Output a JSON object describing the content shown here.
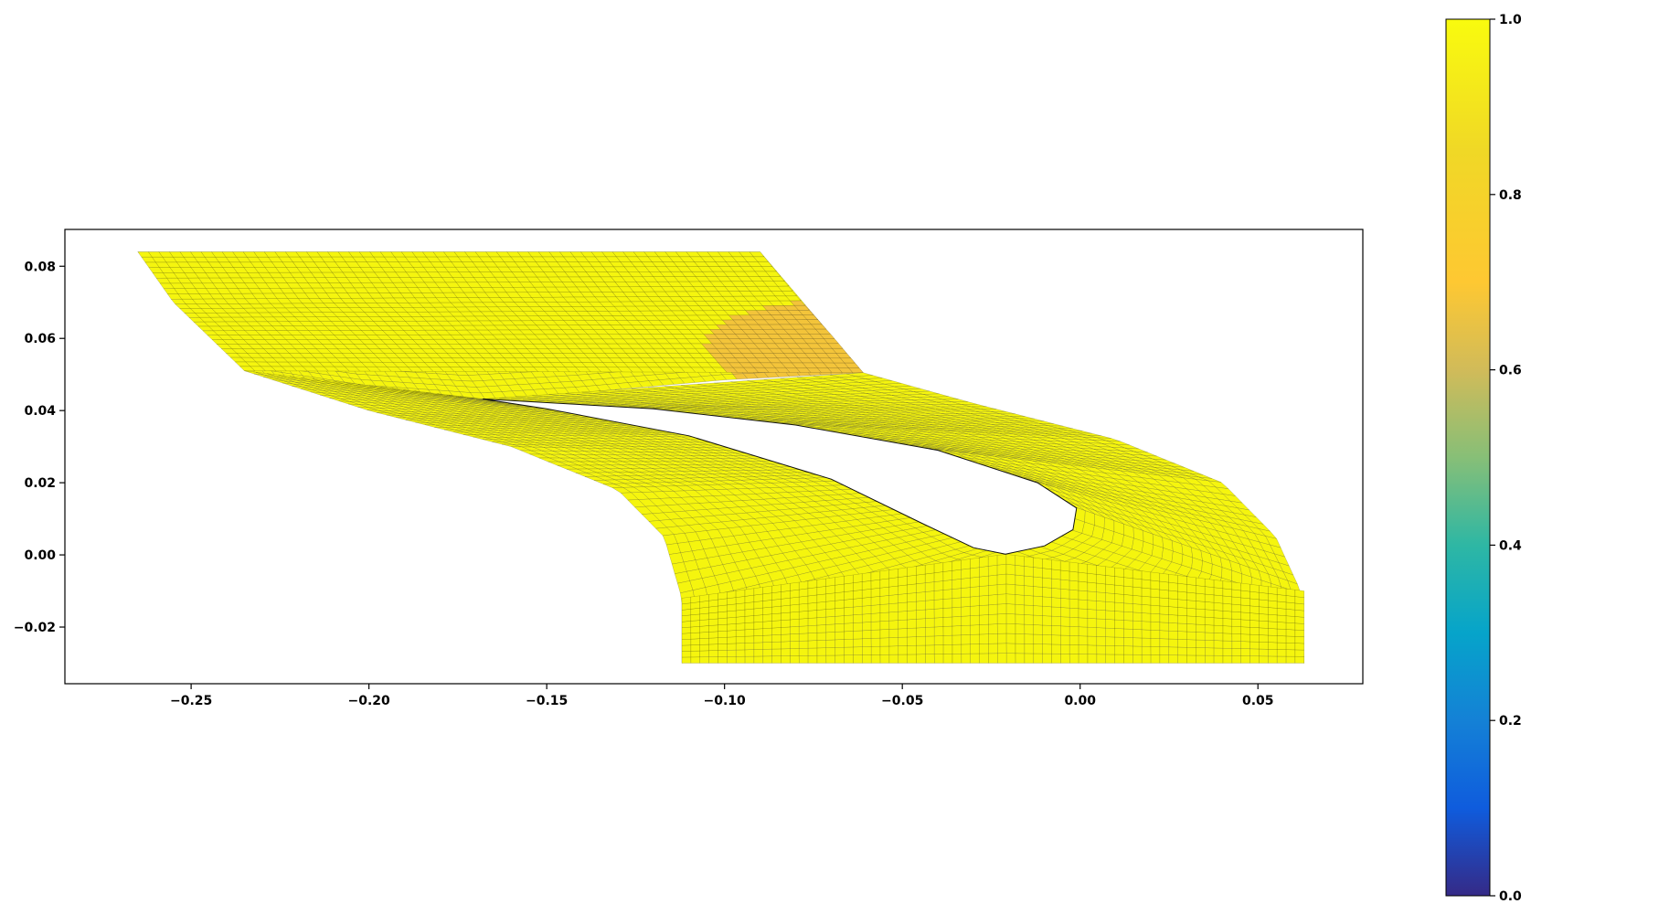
{
  "chart_data": {
    "type": "heatmap",
    "title": "",
    "xlabel": "",
    "ylabel": "",
    "xlim": [
      -0.2855,
      0.0795
    ],
    "ylim": [
      -0.0357,
      0.0902
    ],
    "x_ticks": [
      -0.25,
      -0.2,
      -0.15,
      -0.1,
      -0.05,
      0.0,
      0.05
    ],
    "x_tick_labels": [
      "−0.25",
      "−0.20",
      "−0.15",
      "−0.10",
      "−0.05",
      "0.00",
      "0.05"
    ],
    "y_ticks": [
      -0.02,
      0.0,
      0.02,
      0.04,
      0.06,
      0.08
    ],
    "y_tick_labels": [
      "−0.02",
      "0.00",
      "0.02",
      "0.04",
      "0.06",
      "0.08"
    ],
    "grid": false,
    "mesh": {
      "description_of_field": "structured mesh around turbine blade, near-uniform value ~0.95-1.0",
      "outer_top_x": [
        -0.265,
        -0.09
      ],
      "outer_top_y": 0.084,
      "outer_bottom_x": [
        -0.112,
        0.063
      ],
      "outer_bottom_y": -0.03,
      "blade_leading_edge": [
        -0.168,
        0.0432
      ],
      "blade_trailing_edge": [
        -0.021,
        0.0002
      ],
      "field_min": 0.78,
      "field_max": 1.0
    },
    "colorbar": {
      "colormap": "parula",
      "range": [
        0.0,
        1.0
      ],
      "ticks": [
        0.0,
        0.2,
        0.4,
        0.6,
        0.8,
        1.0
      ],
      "tick_labels": [
        "0.0",
        "0.2",
        "0.4",
        "0.6",
        "0.8",
        "1.0"
      ]
    },
    "colors": {
      "mesh_fill": "#f5f50e",
      "mesh_hot": "#f3c43a",
      "mesh_line": "#1a1a1a"
    }
  }
}
